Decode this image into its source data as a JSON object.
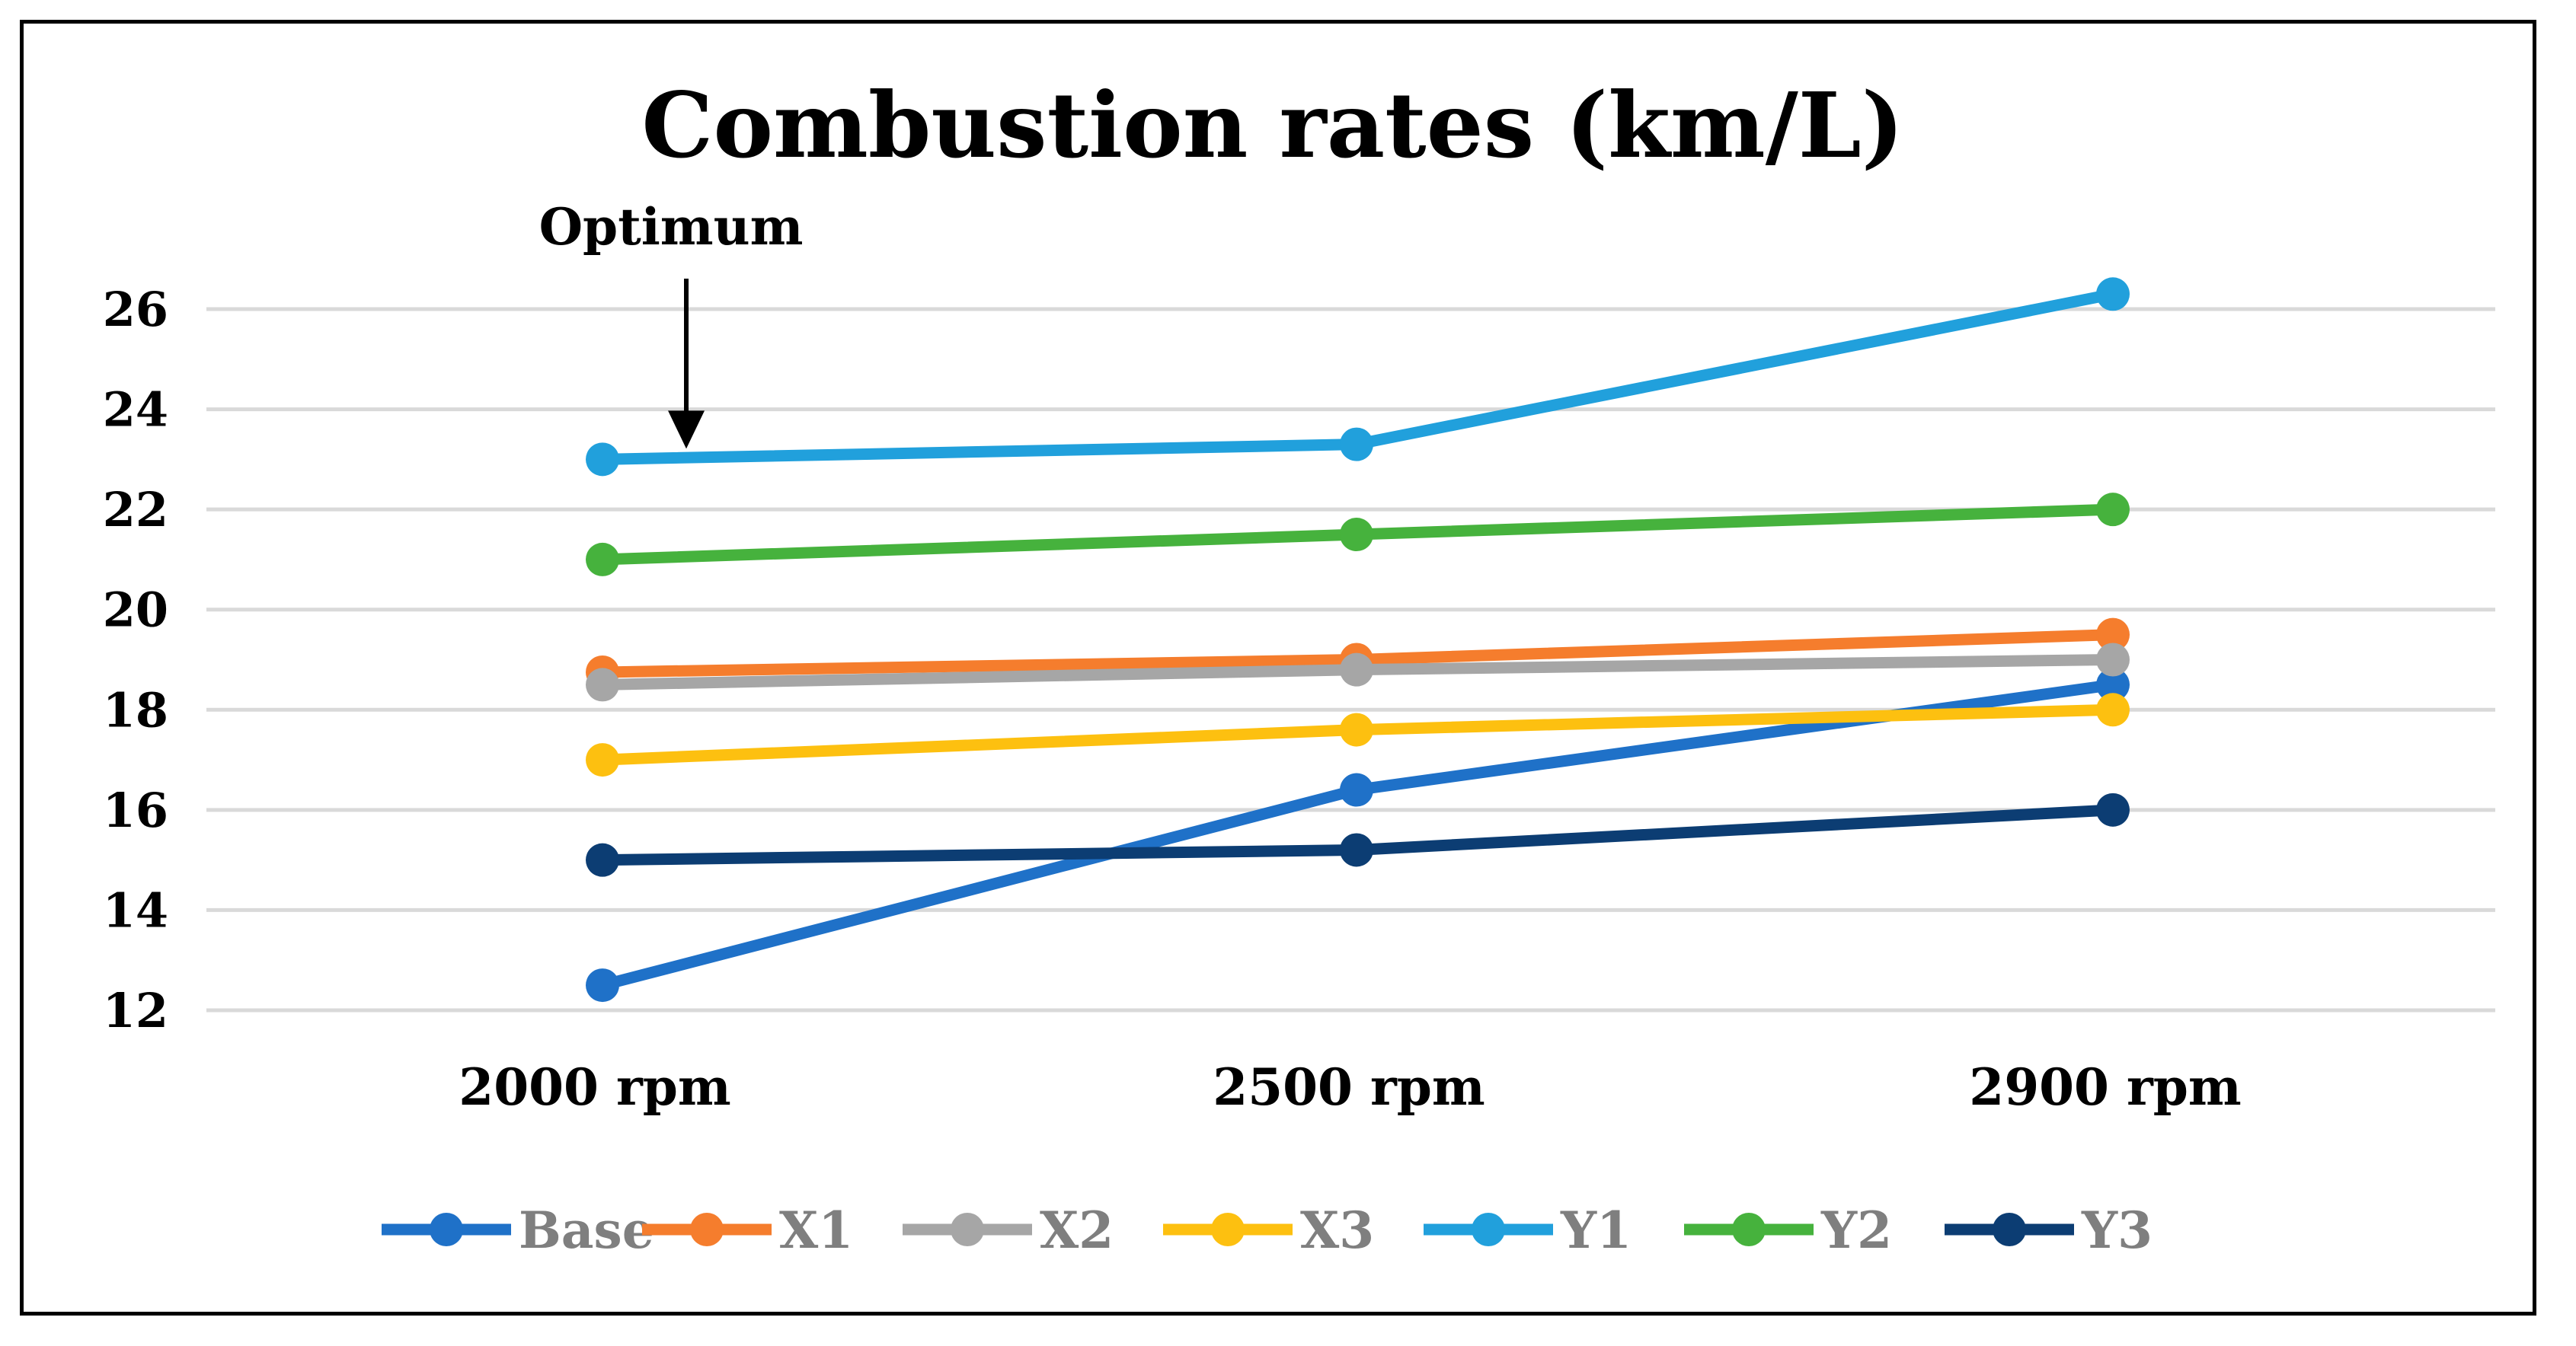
{
  "chart_data": {
    "type": "line",
    "title": "Combustion rates (km/L)",
    "xlabel": "",
    "ylabel": "",
    "categories": [
      "2000 rpm",
      "2500 rpm",
      "2900 rpm"
    ],
    "ylim": [
      11.5,
      27.5
    ],
    "yticks": [
      12,
      14,
      16,
      18,
      20,
      22,
      24,
      26
    ],
    "grid": true,
    "legend_position": "bottom",
    "annotation": {
      "text": "Optimum",
      "category": "2000 rpm",
      "series": "Y1"
    },
    "series": [
      {
        "name": "Base",
        "color": "#1f71c8",
        "values": [
          12.5,
          16.4,
          18.5
        ]
      },
      {
        "name": "X1",
        "color": "#f57d2d",
        "values": [
          18.75,
          19.0,
          19.5
        ]
      },
      {
        "name": "X2",
        "color": "#a6a6a6",
        "values": [
          18.5,
          18.8,
          19.0
        ]
      },
      {
        "name": "X3",
        "color": "#fdc010",
        "values": [
          17.0,
          17.6,
          18.0
        ]
      },
      {
        "name": "Y1",
        "color": "#21a0dc",
        "values": [
          23.0,
          23.3,
          26.3
        ]
      },
      {
        "name": "Y2",
        "color": "#46b23d",
        "values": [
          21.0,
          21.5,
          22.0
        ]
      },
      {
        "name": "Y3",
        "color": "#0c3d73",
        "values": [
          15.0,
          15.2,
          16.0
        ]
      }
    ]
  }
}
